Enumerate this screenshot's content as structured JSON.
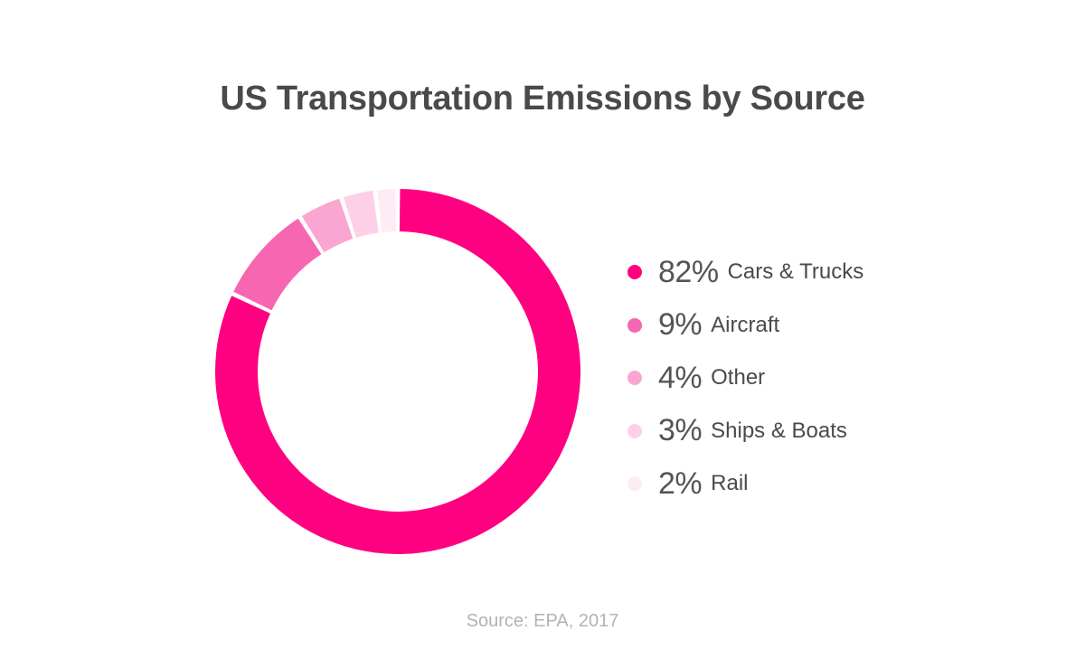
{
  "chart_data": {
    "type": "pie",
    "title": "US Transportation Emissions by Source",
    "source": "Source: EPA, 2017",
    "slices": [
      {
        "label": "Cars & Trucks",
        "value": 82,
        "pct_label": "82%",
        "color": "#ff0080"
      },
      {
        "label": "Aircraft",
        "value": 9,
        "pct_label": "9%",
        "color": "#f766b0"
      },
      {
        "label": "Other",
        "value": 4,
        "pct_label": "4%",
        "color": "#faa6d2"
      },
      {
        "label": "Ships & Boats",
        "value": 3,
        "pct_label": "3%",
        "color": "#fdd0e7"
      },
      {
        "label": "Rail",
        "value": 2,
        "pct_label": "2%",
        "color": "#fdecf4"
      }
    ],
    "legend_position": "right",
    "donut": true
  }
}
